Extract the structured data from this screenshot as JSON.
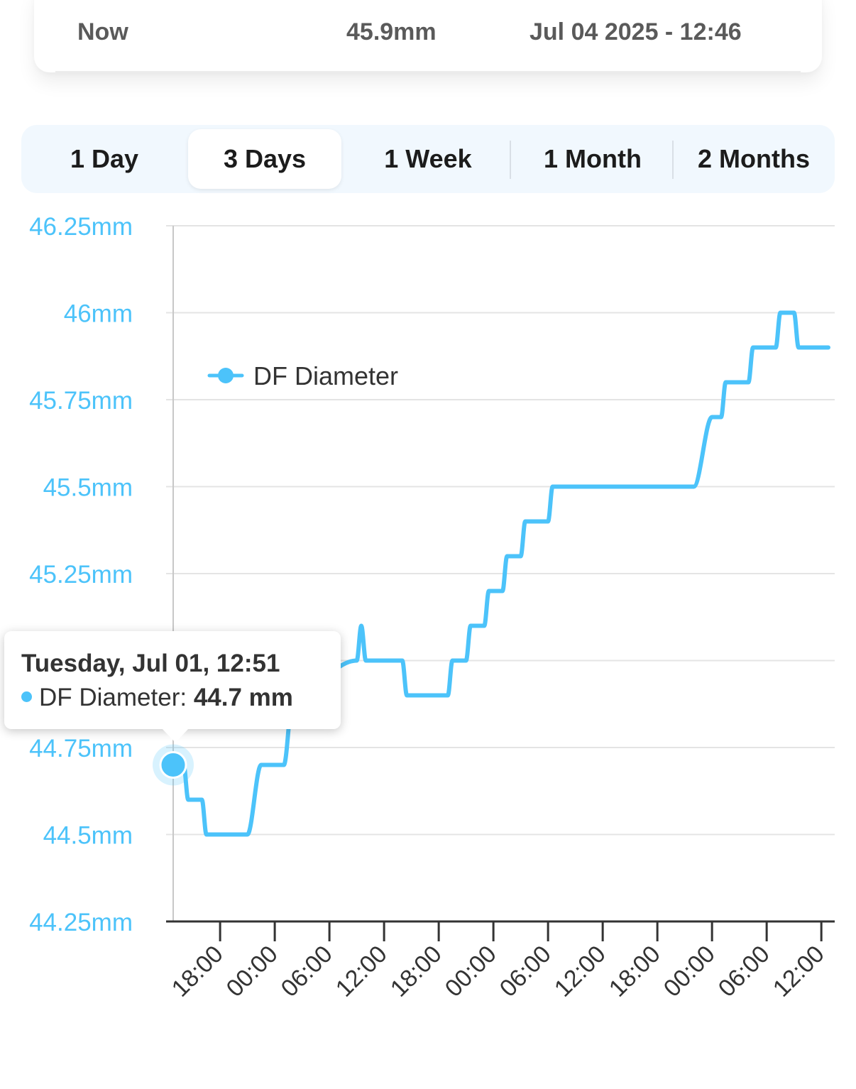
{
  "summary": {
    "label": "Now",
    "value": "45.9mm",
    "timestamp": "Jul 04 2025 - 12:46"
  },
  "range_tabs": [
    {
      "label": "1 Day",
      "selected": false
    },
    {
      "label": "3 Days",
      "selected": true
    },
    {
      "label": "1 Week",
      "selected": false
    },
    {
      "label": "1 Month",
      "selected": false
    },
    {
      "label": "2 Months",
      "selected": false
    }
  ],
  "colors": {
    "series": "#4cc3fa",
    "axis_label": "#4cc3fa",
    "grid": "#e4e4e4",
    "tab_bar": "#f1f8fe"
  },
  "tooltip": {
    "title": "Tuesday, Jul 01, 12:51",
    "series": "DF Diameter",
    "value": "44.7 mm"
  },
  "chart_data": {
    "type": "line",
    "title": "",
    "xlabel": "",
    "ylabel": "",
    "legend": {
      "entries": [
        "DF Diameter"
      ],
      "placement": "top-left"
    },
    "grid": true,
    "ylim": [
      44.25,
      46.25
    ],
    "y_ticks": [
      "44.25mm",
      "44.5mm",
      "44.75mm",
      "45mm",
      "45.25mm",
      "45.5mm",
      "45.75mm",
      "46mm",
      "46.25mm"
    ],
    "y_tick_values": [
      44.25,
      44.5,
      44.75,
      45,
      45.25,
      45.5,
      45.75,
      46,
      46.25
    ],
    "y_tick_hidden": [
      45
    ],
    "xlim": [
      "2025-07-01 12:51",
      "2025-07-04 12:46"
    ],
    "x_ticks": [
      {
        "label": "18:00",
        "t": "2025-07-01 18:00"
      },
      {
        "label": "00:00",
        "t": "2025-07-02 00:00"
      },
      {
        "label": "06:00",
        "t": "2025-07-02 06:00"
      },
      {
        "label": "12:00",
        "t": "2025-07-02 12:00"
      },
      {
        "label": "18:00",
        "t": "2025-07-02 18:00"
      },
      {
        "label": "00:00",
        "t": "2025-07-03 00:00"
      },
      {
        "label": "06:00",
        "t": "2025-07-03 06:00"
      },
      {
        "label": "12:00",
        "t": "2025-07-03 12:00"
      },
      {
        "label": "18:00",
        "t": "2025-07-03 18:00"
      },
      {
        "label": "00:00",
        "t": "2025-07-04 00:00"
      },
      {
        "label": "06:00",
        "t": "2025-07-04 06:00"
      },
      {
        "label": "12:00",
        "t": "2025-07-04 12:00"
      }
    ],
    "series": [
      {
        "name": "DF Diameter",
        "highlight": {
          "x": "2025-07-01 12:51",
          "y": 44.7
        },
        "points": [
          {
            "x": "2025-07-01 12:51",
            "y": 44.7
          },
          {
            "x": "2025-07-01 14:00",
            "y": 44.7
          },
          {
            "x": "2025-07-01 14:30",
            "y": 44.6
          },
          {
            "x": "2025-07-01 16:00",
            "y": 44.6
          },
          {
            "x": "2025-07-01 16:30",
            "y": 44.5
          },
          {
            "x": "2025-07-01 21:00",
            "y": 44.5
          },
          {
            "x": "2025-07-01 22:30",
            "y": 44.7
          },
          {
            "x": "2025-07-02 01:00",
            "y": 44.7
          },
          {
            "x": "2025-07-02 02:00",
            "y": 44.9
          },
          {
            "x": "2025-07-02 09:00",
            "y": 45
          },
          {
            "x": "2025-07-02 09:30",
            "y": 45.1
          },
          {
            "x": "2025-07-02 10:00",
            "y": 45
          },
          {
            "x": "2025-07-02 14:00",
            "y": 45
          },
          {
            "x": "2025-07-02 14:30",
            "y": 44.9
          },
          {
            "x": "2025-07-02 19:00",
            "y": 44.9
          },
          {
            "x": "2025-07-02 19:30",
            "y": 45
          },
          {
            "x": "2025-07-02 21:00",
            "y": 45
          },
          {
            "x": "2025-07-02 21:30",
            "y": 45.1
          },
          {
            "x": "2025-07-02 23:00",
            "y": 45.1
          },
          {
            "x": "2025-07-02 23:30",
            "y": 45.2
          },
          {
            "x": "2025-07-03 01:00",
            "y": 45.2
          },
          {
            "x": "2025-07-03 01:30",
            "y": 45.3
          },
          {
            "x": "2025-07-03 03:00",
            "y": 45.3
          },
          {
            "x": "2025-07-03 03:30",
            "y": 45.4
          },
          {
            "x": "2025-07-03 06:00",
            "y": 45.4
          },
          {
            "x": "2025-07-03 06:30",
            "y": 45.5
          },
          {
            "x": "2025-07-03 22:00",
            "y": 45.5
          },
          {
            "x": "2025-07-04 00:00",
            "y": 45.7
          },
          {
            "x": "2025-07-04 01:00",
            "y": 45.7
          },
          {
            "x": "2025-07-04 01:30",
            "y": 45.8
          },
          {
            "x": "2025-07-04 04:00",
            "y": 45.8
          },
          {
            "x": "2025-07-04 04:30",
            "y": 45.9
          },
          {
            "x": "2025-07-04 07:00",
            "y": 45.9
          },
          {
            "x": "2025-07-04 07:30",
            "y": 46
          },
          {
            "x": "2025-07-04 09:00",
            "y": 46
          },
          {
            "x": "2025-07-04 09:30",
            "y": 45.9
          },
          {
            "x": "2025-07-04 12:46",
            "y": 45.9
          }
        ]
      }
    ]
  }
}
